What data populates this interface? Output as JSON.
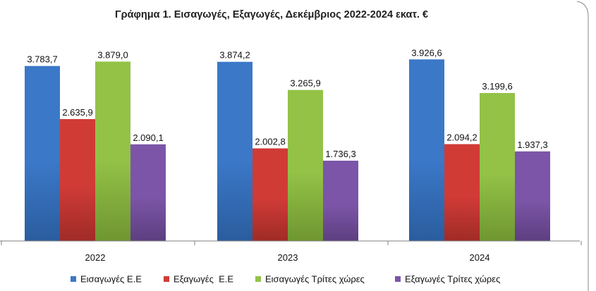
{
  "chart_data": {
    "type": "bar",
    "title": "Γράφημα 1. Εισαγωγές, Εξαγωγές, Δεκέμβριος 2022-2024 εκατ. €",
    "xlabel": "",
    "ylabel": "",
    "categories": [
      "2022",
      "2023",
      "2024"
    ],
    "series": [
      {
        "name": "Εισαγωγές Ε.Ε",
        "values": [
          3783.7,
          3874.2,
          3926.6
        ],
        "labels": [
          "3.783,7",
          "3.874,2",
          "3.926,6"
        ],
        "color": "#3b78c8",
        "dark": "#2a5d9e"
      },
      {
        "name": "Εξαγωγές  Ε.Ε",
        "values": [
          2635.9,
          2002.8,
          2094.2
        ],
        "labels": [
          "2.635,9",
          "2.002,8",
          "2.094,2"
        ],
        "color": "#d03b36",
        "dark": "#a02b27"
      },
      {
        "name": "Εισαγωγές Τρίτες χώρες",
        "values": [
          3879.0,
          3265.9,
          3199.6
        ],
        "labels": [
          "3.879,0",
          "3.265,9",
          "3.199,6"
        ],
        "color": "#93c247",
        "dark": "#6f9631"
      },
      {
        "name": "Εξαγωγές Τρίτες χώρες",
        "values": [
          2090.1,
          1736.3,
          1937.3
        ],
        "labels": [
          "2.090,1",
          "1.736,3",
          "1.937,3"
        ],
        "color": "#7c55a8",
        "dark": "#5d3f80"
      }
    ],
    "ylim": [
      0,
      4000
    ],
    "grid": false,
    "legend": "bottom"
  }
}
